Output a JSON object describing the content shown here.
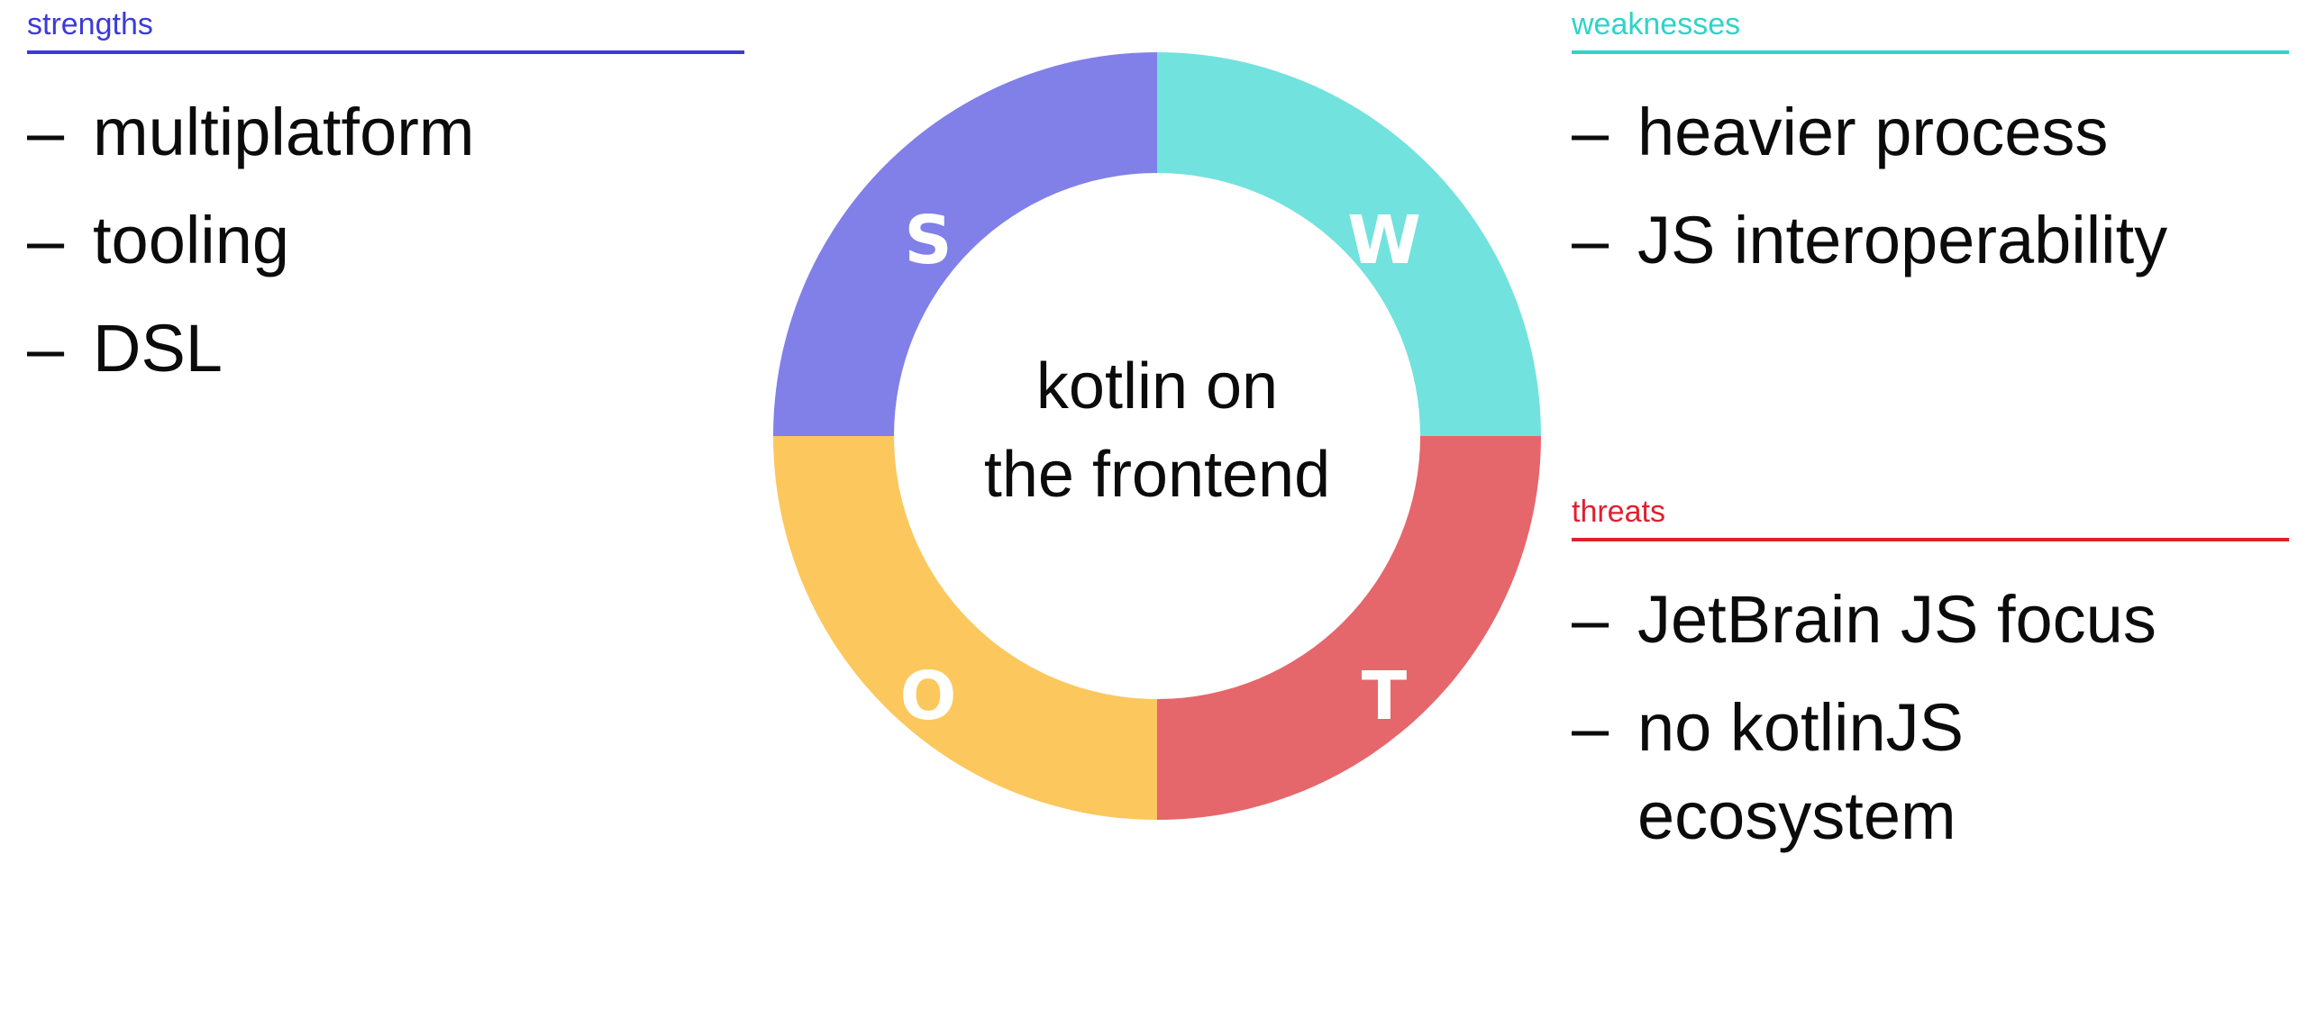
{
  "center_title": [
    "kotlin on",
    "the frontend"
  ],
  "quadrants": {
    "strengths": {
      "heading": "strengths",
      "letter": "S",
      "color": "#8080e8",
      "heading_color": "#3d3ad9",
      "items": [
        "multiplatform",
        "tooling",
        "DSL"
      ]
    },
    "weaknesses": {
      "heading": "weaknesses",
      "letter": "W",
      "color": "#72e2de",
      "heading_color": "#2fd3c8",
      "items": [
        "heavier process",
        "JS interoperability"
      ]
    },
    "opportunities": {
      "letter": "O",
      "color": "#fcc75c"
    },
    "threats": {
      "heading": "threats",
      "letter": "T",
      "color": "#e5676b",
      "heading_color": "#e0202f",
      "items": [
        "JetBrain JS focus",
        "no kotlinJS ecosystem"
      ]
    }
  },
  "dash": "–"
}
